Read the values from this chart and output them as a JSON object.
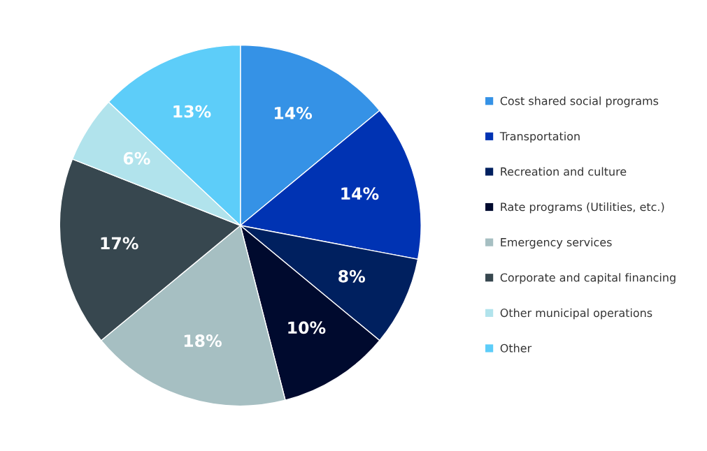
{
  "chart_data": {
    "type": "pie",
    "categories": [
      "Cost shared social programs",
      "Transportation",
      "Recreation and culture",
      "Rate programs (Utilities, etc.)",
      "Emergency services",
      "Corporate and capital financing",
      "Other municipal operations",
      "Other"
    ],
    "values": [
      14,
      14,
      8,
      10,
      18,
      17,
      6,
      13
    ],
    "colors": [
      "#3592e6",
      "#0033b3",
      "#00205f",
      "#000a2e",
      "#a6bfc2",
      "#37474f",
      "#b1e3ec",
      "#5dcdf9"
    ],
    "value_labels": [
      "14%",
      "14%",
      "8%",
      "10%",
      "18%",
      "17%",
      "6%",
      "13%"
    ],
    "legend": "right"
  }
}
